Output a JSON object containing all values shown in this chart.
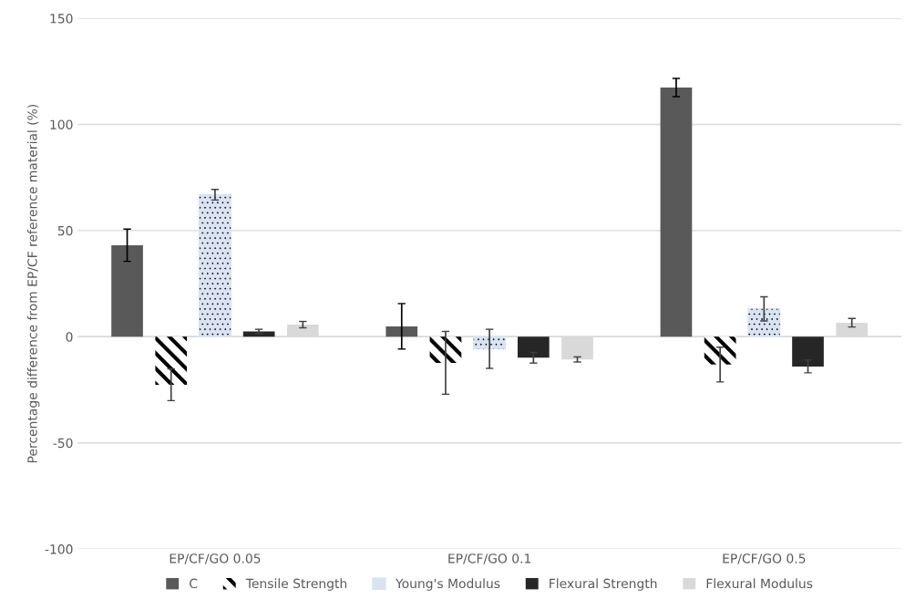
{
  "chart_data": {
    "type": "bar",
    "ylabel": "Percentage difference from EP/CF reference material (%)",
    "categories": [
      "EP/CF/GO 0.05",
      "EP/CF/GO 0.1",
      "EP/CF/GO 0.5"
    ],
    "series": [
      {
        "name": "C",
        "color": "#595959",
        "values": [
          43.1,
          4.9,
          117.4
        ],
        "errors": [
          7.6,
          10.7,
          4.3
        ]
      },
      {
        "name": "Tensile Strength",
        "color": "#000000",
        "values": [
          -22.6,
          -12.3,
          -13.1
        ],
        "errors": [
          7.5,
          14.8,
          8.2
        ]
      },
      {
        "name": "Young's Modulus",
        "color": "#dae3f3",
        "values": [
          66.9,
          -5.7,
          13.1
        ],
        "errors": [
          2.5,
          9.2,
          5.7
        ]
      },
      {
        "name": "Flexural Strength",
        "color": "#262626",
        "values": [
          2.5,
          -9.9,
          -14.0
        ],
        "errors": [
          1,
          2.5,
          3
        ]
      },
      {
        "name": "Flexural Modulus",
        "color": "#d9d9d9",
        "values": [
          5.7,
          -10.7,
          6.6
        ],
        "errors": [
          1.5,
          1.2,
          2
        ]
      }
    ],
    "ylim": [
      -100,
      150
    ],
    "yticks": [
      -100,
      -50,
      0,
      50,
      100,
      150
    ],
    "grid": "y",
    "legend": "bottom"
  }
}
